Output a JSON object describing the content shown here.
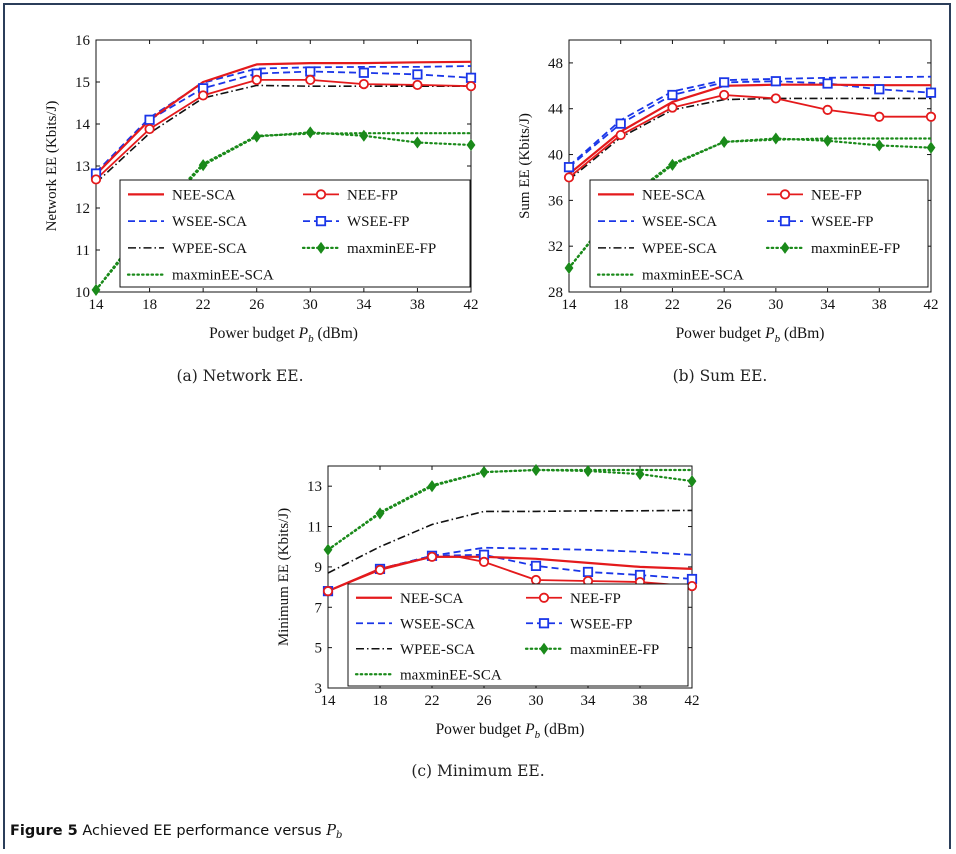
{
  "figure": {
    "label": "Figure 5",
    "caption_text": "Achieved EE performance versus",
    "caption_symbol": "P",
    "caption_subscript": "b"
  },
  "styles": {
    "NEE-SCA": {
      "color": "#e41a1c",
      "dash": "solid",
      "width": 2.2,
      "marker": "none"
    },
    "NEE-FP": {
      "color": "#e41a1c",
      "dash": "solid",
      "width": 1.8,
      "marker": "circle"
    },
    "WSEE-SCA": {
      "color": "#1a36e8",
      "dash": "dashed",
      "width": 1.8,
      "marker": "none"
    },
    "WSEE-FP": {
      "color": "#1a36e8",
      "dash": "dashed",
      "width": 1.8,
      "marker": "square"
    },
    "WPEE-SCA": {
      "color": "#111111",
      "dash": "dashdot",
      "width": 1.6,
      "marker": "none"
    },
    "maxminEE-FP": {
      "color": "#1a8a1a",
      "dash": "dotted",
      "width": 2.2,
      "marker": "diamond"
    },
    "maxminEE-SCA": {
      "color": "#1a8a1a",
      "dash": "dotted",
      "width": 2.2,
      "marker": "none"
    }
  },
  "chart_data": [
    {
      "type": "line",
      "subcaption": "(a) Network EE.",
      "xlabel_prefix": "Power budget",
      "xlabel_symbol": "P",
      "xlabel_subscript": "b",
      "xlabel_suffix": "(dBm)",
      "ylabel": "Network EE (Kbits/J)",
      "xlim": [
        14,
        42
      ],
      "ylim": [
        10,
        16
      ],
      "x_ticks": [
        14,
        18,
        22,
        26,
        30,
        34,
        38,
        42
      ],
      "y_ticks": [
        10,
        11,
        12,
        13,
        14,
        15,
        16
      ],
      "grid": false,
      "legend_location": "lower-center",
      "series": [
        {
          "name": "NEE-SCA",
          "x": [
            14,
            18,
            22,
            26,
            30,
            34,
            38,
            42
          ],
          "y": [
            12.8,
            14.1,
            15.0,
            15.42,
            15.45,
            15.45,
            15.47,
            15.48
          ]
        },
        {
          "name": "NEE-FP",
          "x": [
            14,
            18,
            22,
            26,
            30,
            34,
            38,
            42
          ],
          "y": [
            12.68,
            13.88,
            14.68,
            15.05,
            15.05,
            14.95,
            14.93,
            14.9
          ]
        },
        {
          "name": "WSEE-SCA",
          "x": [
            14,
            18,
            22,
            26,
            30,
            34,
            38,
            42
          ],
          "y": [
            12.85,
            14.15,
            14.98,
            15.32,
            15.35,
            15.36,
            15.36,
            15.38
          ]
        },
        {
          "name": "WSEE-FP",
          "x": [
            14,
            18,
            22,
            26,
            30,
            34,
            38,
            42
          ],
          "y": [
            12.82,
            14.1,
            14.85,
            15.2,
            15.25,
            15.22,
            15.18,
            15.1
          ]
        },
        {
          "name": "WPEE-SCA",
          "x": [
            14,
            18,
            22,
            26,
            30,
            34,
            38,
            42
          ],
          "y": [
            12.6,
            13.78,
            14.62,
            14.92,
            14.9,
            14.9,
            14.9,
            14.9
          ]
        },
        {
          "name": "maxminEE-FP",
          "x": [
            14,
            18,
            22,
            26,
            30,
            34,
            38,
            42
          ],
          "y": [
            10.05,
            11.6,
            13.02,
            13.7,
            13.8,
            13.72,
            13.56,
            13.5
          ]
        },
        {
          "name": "maxminEE-SCA",
          "x": [
            14,
            18,
            22,
            26,
            30,
            34,
            38,
            42
          ],
          "y": [
            10.05,
            11.7,
            13.05,
            13.72,
            13.77,
            13.78,
            13.78,
            13.78
          ]
        }
      ]
    },
    {
      "type": "line",
      "subcaption": "(b) Sum EE.",
      "xlabel_prefix": "Power budget",
      "xlabel_symbol": "P",
      "xlabel_subscript": "b",
      "xlabel_suffix": "(dBm)",
      "ylabel": "Sum EE (Kbits/J)",
      "xlim": [
        14,
        42
      ],
      "ylim": [
        28,
        50
      ],
      "x_ticks": [
        14,
        18,
        22,
        26,
        30,
        34,
        38,
        42
      ],
      "y_ticks": [
        28,
        32,
        36,
        40,
        44,
        48
      ],
      "grid": false,
      "legend_location": "lower-center",
      "series": [
        {
          "name": "NEE-SCA",
          "x": [
            14,
            18,
            22,
            26,
            30,
            34,
            38,
            42
          ],
          "y": [
            38.3,
            42.0,
            44.6,
            46.0,
            46.1,
            46.1,
            46.05,
            46.05
          ]
        },
        {
          "name": "NEE-FP",
          "x": [
            14,
            18,
            22,
            26,
            30,
            34,
            38,
            42
          ],
          "y": [
            38.0,
            41.7,
            44.1,
            45.2,
            44.9,
            43.9,
            43.3,
            43.3
          ]
        },
        {
          "name": "WSEE-SCA",
          "x": [
            14,
            18,
            22,
            26,
            30,
            34,
            38,
            42
          ],
          "y": [
            39.0,
            43.0,
            45.5,
            46.5,
            46.6,
            46.7,
            46.75,
            46.8
          ]
        },
        {
          "name": "WSEE-FP",
          "x": [
            14,
            18,
            22,
            26,
            30,
            34,
            38,
            42
          ],
          "y": [
            38.9,
            42.7,
            45.2,
            46.3,
            46.4,
            46.2,
            45.7,
            45.4
          ]
        },
        {
          "name": "WPEE-SCA",
          "x": [
            14,
            18,
            22,
            26,
            30,
            34,
            38,
            42
          ],
          "y": [
            37.8,
            41.5,
            43.9,
            44.8,
            44.9,
            44.9,
            44.9,
            44.9
          ]
        },
        {
          "name": "maxminEE-FP",
          "x": [
            14,
            18,
            22,
            26,
            30,
            34,
            38,
            42
          ],
          "y": [
            30.1,
            35.6,
            39.1,
            41.1,
            41.4,
            41.2,
            40.8,
            40.6
          ]
        },
        {
          "name": "maxminEE-SCA",
          "x": [
            14,
            18,
            22,
            26,
            30,
            34,
            38,
            42
          ],
          "y": [
            30.1,
            35.8,
            39.2,
            41.1,
            41.3,
            41.4,
            41.4,
            41.4
          ]
        }
      ]
    },
    {
      "type": "line",
      "subcaption": "(c) Minimum EE.",
      "xlabel_prefix": "Power budget",
      "xlabel_symbol": "P",
      "xlabel_subscript": "b",
      "xlabel_suffix": "(dBm)",
      "ylabel": "Minimum EE (Kbits/J)",
      "xlim": [
        14,
        42
      ],
      "ylim": [
        3,
        14
      ],
      "x_ticks": [
        14,
        18,
        22,
        26,
        30,
        34,
        38,
        42
      ],
      "y_ticks": [
        3,
        5,
        7,
        9,
        11,
        13
      ],
      "grid": false,
      "legend_location": "lower-center",
      "series": [
        {
          "name": "NEE-SCA",
          "x": [
            14,
            18,
            22,
            26,
            30,
            34,
            38,
            42
          ],
          "y": [
            7.8,
            8.9,
            9.5,
            9.5,
            9.4,
            9.2,
            9.0,
            8.9
          ]
        },
        {
          "name": "NEE-FP",
          "x": [
            14,
            18,
            22,
            24,
            26,
            30,
            34,
            38,
            42
          ],
          "y": [
            7.8,
            8.85,
            9.5,
            9.5,
            9.25,
            8.35,
            8.3,
            8.25,
            8.05
          ]
        },
        {
          "name": "WSEE-SCA",
          "x": [
            14,
            18,
            22,
            26,
            30,
            34,
            38,
            42
          ],
          "y": [
            7.8,
            8.9,
            9.55,
            9.95,
            9.9,
            9.85,
            9.75,
            9.6
          ]
        },
        {
          "name": "WSEE-FP",
          "x": [
            14,
            18,
            22,
            26,
            30,
            34,
            38,
            42
          ],
          "y": [
            7.8,
            8.9,
            9.55,
            9.6,
            9.05,
            8.75,
            8.6,
            8.4
          ]
        },
        {
          "name": "WPEE-SCA",
          "x": [
            14,
            18,
            22,
            26,
            30,
            34,
            38,
            42
          ],
          "y": [
            8.7,
            10.0,
            11.1,
            11.75,
            11.75,
            11.78,
            11.78,
            11.8
          ]
        },
        {
          "name": "maxminEE-FP",
          "x": [
            14,
            18,
            22,
            26,
            30,
            34,
            38,
            42
          ],
          "y": [
            9.85,
            11.65,
            13.0,
            13.7,
            13.8,
            13.75,
            13.6,
            13.25
          ]
        },
        {
          "name": "maxminEE-SCA",
          "x": [
            14,
            18,
            22,
            26,
            30,
            34,
            38,
            42
          ],
          "y": [
            9.85,
            11.7,
            13.05,
            13.7,
            13.8,
            13.8,
            13.8,
            13.8
          ]
        }
      ]
    }
  ]
}
